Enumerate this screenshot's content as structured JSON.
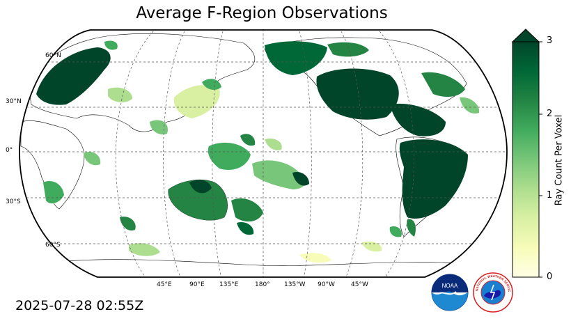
{
  "title": "Average F-Region Observations",
  "timestamp": "2025-07-28 02:55Z",
  "map": {
    "projection": "Robinson",
    "central_longitude": 180,
    "land_color": "#ffffff",
    "ocean_color": "#ffffff",
    "gridlines": "dashed",
    "lat_labels": [
      "60°N",
      "30°N",
      "0°",
      "30°S",
      "60°S"
    ],
    "lon_labels": [
      "45°E",
      "90°E",
      "135°E",
      "180°",
      "135°W",
      "90°W",
      "45°W"
    ]
  },
  "colorbar": {
    "label": "Ray Count Per Voxel",
    "ticks": [
      "0",
      "1",
      "2",
      "3"
    ],
    "range": [
      0,
      3
    ],
    "extend": "max",
    "colormap": "YlGn",
    "colors": [
      "#ffffe5",
      "#f7fcb9",
      "#d9f0a3",
      "#addd8e",
      "#78c679",
      "#41ab5d",
      "#238443",
      "#006837",
      "#004529"
    ]
  },
  "logos": {
    "noaa_text": "NOAA",
    "nws_text": "NATIONAL WEATHER SERVICE"
  },
  "regions": [
    {
      "name": "Europe / Scandinavia",
      "level": 3
    },
    {
      "name": "North America",
      "level": 3
    },
    {
      "name": "South America",
      "level": 3
    },
    {
      "name": "North Pacific / Alaska",
      "level": 2.5
    },
    {
      "name": "Australia",
      "level": 2.5
    },
    {
      "name": "Central & South Pacific",
      "level": 2
    },
    {
      "name": "Southern Africa",
      "level": 2
    },
    {
      "name": "East Asia / Japan",
      "level": 1
    },
    {
      "name": "Antarctic coast",
      "level": 1
    }
  ]
}
